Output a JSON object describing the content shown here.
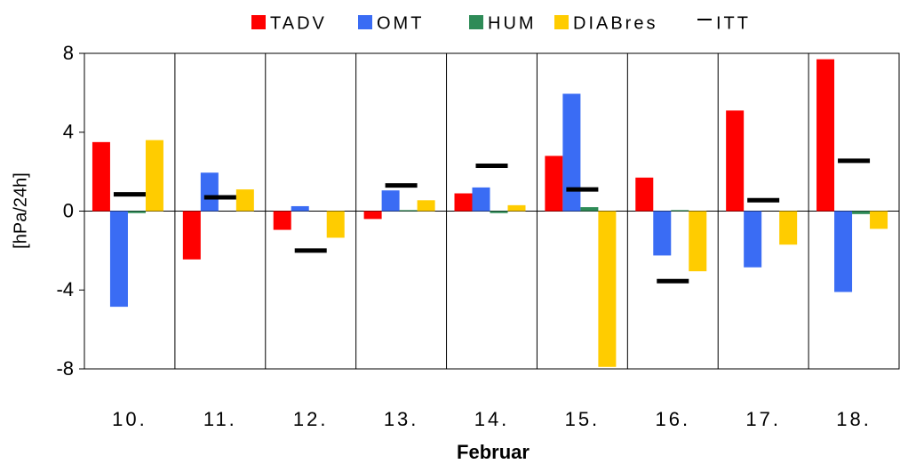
{
  "chart_data": {
    "type": "bar",
    "ylabel": "[hPa/24h]",
    "xlabel": "Februar",
    "categories": [
      "10.",
      "11.",
      "12.",
      "13.",
      "14.",
      "15.",
      "16.",
      "17.",
      "18."
    ],
    "series": [
      {
        "name": "TADV",
        "color": "#ff0000",
        "values": [
          3.5,
          -2.45,
          -0.95,
          -0.4,
          0.9,
          2.8,
          1.7,
          5.1,
          7.7
        ]
      },
      {
        "name": "OMT",
        "color": "#3a6cf4",
        "values": [
          -4.85,
          1.95,
          0.25,
          1.05,
          1.2,
          5.95,
          -2.25,
          -2.85,
          -4.1
        ]
      },
      {
        "name": "HUM",
        "color": "#2e8b57",
        "values": [
          -0.1,
          0,
          0,
          0.05,
          -0.1,
          0.2,
          0.05,
          0,
          -0.15
        ]
      },
      {
        "name": "DIABres",
        "color": "#ffcc00",
        "values": [
          3.6,
          1.1,
          -1.35,
          0.55,
          0.3,
          -7.9,
          -3.05,
          -1.7,
          -0.9
        ]
      },
      {
        "name": "ITT",
        "color": "#000000",
        "marker": "line",
        "values": [
          0.85,
          0.7,
          -2.0,
          1.3,
          2.3,
          1.1,
          -3.55,
          0.55,
          2.55
        ]
      }
    ],
    "ylim": [
      -8,
      8
    ],
    "yticks": [
      -8,
      -4,
      0,
      4,
      8
    ]
  }
}
